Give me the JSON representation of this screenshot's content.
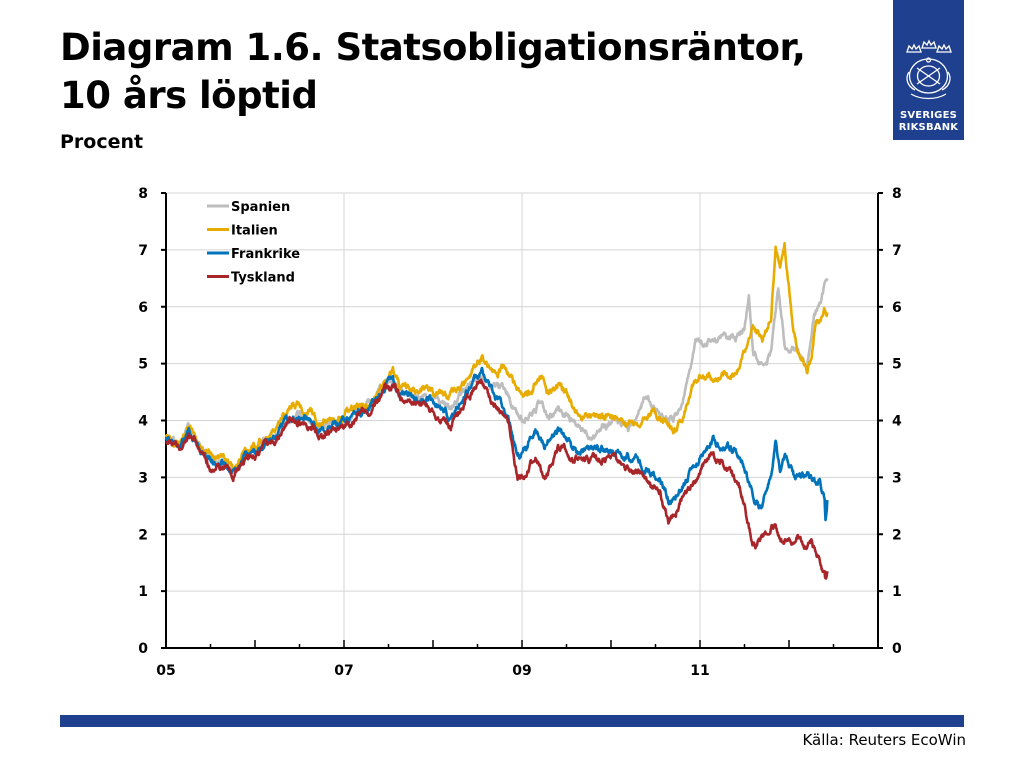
{
  "slide": {
    "title_line1": "Diagram 1.6. Statsobligationsräntor,",
    "title_line2": "10 års löptid",
    "subtitle": "Procent",
    "source": "Källa: Reuters EcoWin"
  },
  "logo": {
    "icon": "crown-emblem-icon",
    "text_line1": "SVERIGES",
    "text_line2": "RIKSBANK",
    "color": "#1f3f8f"
  },
  "chart_data": {
    "type": "line",
    "title": "",
    "xlabel": "",
    "ylabel": "Procent",
    "x_ticks": [
      "05",
      "07",
      "09",
      "11"
    ],
    "x_range": [
      2005.0,
      2013.0
    ],
    "y_ticks": [
      0,
      1,
      2,
      3,
      4,
      5,
      6,
      7,
      8
    ],
    "ylim": [
      0,
      8
    ],
    "grid": true,
    "legend_position": "top-left",
    "series": [
      {
        "name": "Spanien",
        "color": "#bdbdbd",
        "points": [
          [
            2005.0,
            3.75
          ],
          [
            2005.15,
            3.6
          ],
          [
            2005.25,
            3.85
          ],
          [
            2005.4,
            3.5
          ],
          [
            2005.5,
            3.35
          ],
          [
            2005.65,
            3.3
          ],
          [
            2005.75,
            3.1
          ],
          [
            2005.85,
            3.3
          ],
          [
            2005.95,
            3.45
          ],
          [
            2006.1,
            3.6
          ],
          [
            2006.25,
            3.75
          ],
          [
            2006.4,
            4.0
          ],
          [
            2006.55,
            4.1
          ],
          [
            2006.65,
            4.0
          ],
          [
            2006.75,
            3.85
          ],
          [
            2006.9,
            3.95
          ],
          [
            2007.0,
            4.0
          ],
          [
            2007.15,
            4.2
          ],
          [
            2007.3,
            4.3
          ],
          [
            2007.45,
            4.6
          ],
          [
            2007.55,
            4.75
          ],
          [
            2007.65,
            4.5
          ],
          [
            2007.8,
            4.4
          ],
          [
            2007.95,
            4.4
          ],
          [
            2008.1,
            4.3
          ],
          [
            2008.2,
            4.2
          ],
          [
            2008.3,
            4.4
          ],
          [
            2008.45,
            4.75
          ],
          [
            2008.55,
            4.85
          ],
          [
            2008.65,
            4.6
          ],
          [
            2008.8,
            4.6
          ],
          [
            2008.92,
            4.2
          ],
          [
            2009.0,
            4.0
          ],
          [
            2009.1,
            4.1
          ],
          [
            2009.2,
            4.3
          ],
          [
            2009.3,
            4.0
          ],
          [
            2009.4,
            4.2
          ],
          [
            2009.5,
            4.1
          ],
          [
            2009.6,
            3.9
          ],
          [
            2009.75,
            3.75
          ],
          [
            2009.9,
            3.9
          ],
          [
            2010.0,
            3.95
          ],
          [
            2010.1,
            4.0
          ],
          [
            2010.2,
            3.9
          ],
          [
            2010.3,
            4.1
          ],
          [
            2010.4,
            4.5
          ],
          [
            2010.5,
            4.2
          ],
          [
            2010.6,
            4.1
          ],
          [
            2010.7,
            4.0
          ],
          [
            2010.8,
            4.3
          ],
          [
            2010.9,
            5.0
          ],
          [
            2010.95,
            5.5
          ],
          [
            2011.05,
            5.3
          ],
          [
            2011.15,
            5.4
          ],
          [
            2011.3,
            5.4
          ],
          [
            2011.4,
            5.4
          ],
          [
            2011.5,
            5.6
          ],
          [
            2011.55,
            6.2
          ],
          [
            2011.6,
            5.2
          ],
          [
            2011.7,
            5.0
          ],
          [
            2011.8,
            5.2
          ],
          [
            2011.88,
            6.4
          ],
          [
            2011.95,
            5.3
          ],
          [
            2012.0,
            5.2
          ],
          [
            2012.1,
            5.3
          ],
          [
            2012.2,
            5.0
          ],
          [
            2012.28,
            5.8
          ],
          [
            2012.35,
            6.0
          ],
          [
            2012.4,
            6.4
          ],
          [
            2012.43,
            6.5
          ]
        ]
      },
      {
        "name": "Italien",
        "color": "#e8ac00",
        "points": [
          [
            2005.0,
            3.8
          ],
          [
            2005.15,
            3.65
          ],
          [
            2005.25,
            3.85
          ],
          [
            2005.4,
            3.55
          ],
          [
            2005.5,
            3.4
          ],
          [
            2005.65,
            3.35
          ],
          [
            2005.75,
            3.15
          ],
          [
            2005.85,
            3.35
          ],
          [
            2005.95,
            3.5
          ],
          [
            2006.1,
            3.7
          ],
          [
            2006.25,
            3.85
          ],
          [
            2006.4,
            4.3
          ],
          [
            2006.55,
            4.2
          ],
          [
            2006.65,
            4.1
          ],
          [
            2006.75,
            3.95
          ],
          [
            2006.9,
            4.05
          ],
          [
            2007.0,
            4.05
          ],
          [
            2007.15,
            4.25
          ],
          [
            2007.3,
            4.35
          ],
          [
            2007.45,
            4.65
          ],
          [
            2007.55,
            4.85
          ],
          [
            2007.65,
            4.55
          ],
          [
            2007.8,
            4.55
          ],
          [
            2007.95,
            4.55
          ],
          [
            2008.1,
            4.5
          ],
          [
            2008.2,
            4.45
          ],
          [
            2008.3,
            4.55
          ],
          [
            2008.45,
            4.95
          ],
          [
            2008.55,
            5.15
          ],
          [
            2008.65,
            4.9
          ],
          [
            2008.8,
            4.9
          ],
          [
            2008.9,
            4.7
          ],
          [
            2009.0,
            4.4
          ],
          [
            2009.1,
            4.5
          ],
          [
            2009.2,
            4.8
          ],
          [
            2009.3,
            4.45
          ],
          [
            2009.4,
            4.6
          ],
          [
            2009.5,
            4.45
          ],
          [
            2009.6,
            4.2
          ],
          [
            2009.75,
            4.05
          ],
          [
            2009.9,
            4.1
          ],
          [
            2010.0,
            4.1
          ],
          [
            2010.1,
            4.0
          ],
          [
            2010.2,
            3.9
          ],
          [
            2010.3,
            4.0
          ],
          [
            2010.4,
            4.2
          ],
          [
            2010.5,
            4.1
          ],
          [
            2010.6,
            4.0
          ],
          [
            2010.7,
            3.8
          ],
          [
            2010.8,
            4.0
          ],
          [
            2010.9,
            4.5
          ],
          [
            2011.0,
            4.8
          ],
          [
            2011.1,
            4.75
          ],
          [
            2011.25,
            4.8
          ],
          [
            2011.4,
            4.8
          ],
          [
            2011.5,
            5.2
          ],
          [
            2011.6,
            5.6
          ],
          [
            2011.7,
            5.4
          ],
          [
            2011.8,
            5.9
          ],
          [
            2011.85,
            7.1
          ],
          [
            2011.9,
            6.6
          ],
          [
            2011.95,
            7.1
          ],
          [
            2012.0,
            6.3
          ],
          [
            2012.05,
            5.5
          ],
          [
            2012.12,
            5.1
          ],
          [
            2012.2,
            4.9
          ],
          [
            2012.25,
            5.0
          ],
          [
            2012.3,
            5.7
          ],
          [
            2012.35,
            5.8
          ],
          [
            2012.4,
            6.0
          ],
          [
            2012.43,
            5.9
          ]
        ]
      },
      {
        "name": "Frankrike",
        "color": "#0073bb",
        "points": [
          [
            2005.0,
            3.7
          ],
          [
            2005.15,
            3.55
          ],
          [
            2005.25,
            3.8
          ],
          [
            2005.4,
            3.45
          ],
          [
            2005.5,
            3.3
          ],
          [
            2005.65,
            3.25
          ],
          [
            2005.75,
            3.05
          ],
          [
            2005.85,
            3.25
          ],
          [
            2005.95,
            3.4
          ],
          [
            2006.1,
            3.55
          ],
          [
            2006.25,
            3.75
          ],
          [
            2006.4,
            4.0
          ],
          [
            2006.55,
            4.05
          ],
          [
            2006.65,
            3.95
          ],
          [
            2006.75,
            3.8
          ],
          [
            2006.9,
            3.9
          ],
          [
            2007.0,
            3.95
          ],
          [
            2007.15,
            4.15
          ],
          [
            2007.3,
            4.25
          ],
          [
            2007.45,
            4.55
          ],
          [
            2007.55,
            4.7
          ],
          [
            2007.65,
            4.45
          ],
          [
            2007.8,
            4.35
          ],
          [
            2007.95,
            4.35
          ],
          [
            2008.1,
            4.2
          ],
          [
            2008.2,
            4.05
          ],
          [
            2008.3,
            4.3
          ],
          [
            2008.45,
            4.7
          ],
          [
            2008.55,
            4.8
          ],
          [
            2008.65,
            4.5
          ],
          [
            2008.75,
            4.3
          ],
          [
            2008.85,
            4.0
          ],
          [
            2008.95,
            3.4
          ],
          [
            2009.05,
            3.5
          ],
          [
            2009.15,
            3.9
          ],
          [
            2009.25,
            3.6
          ],
          [
            2009.4,
            3.8
          ],
          [
            2009.55,
            3.6
          ],
          [
            2009.7,
            3.45
          ],
          [
            2009.85,
            3.5
          ],
          [
            2010.0,
            3.45
          ],
          [
            2010.15,
            3.4
          ],
          [
            2010.3,
            3.3
          ],
          [
            2010.45,
            3.1
          ],
          [
            2010.55,
            3.0
          ],
          [
            2010.65,
            2.6
          ],
          [
            2010.75,
            2.8
          ],
          [
            2010.9,
            3.1
          ],
          [
            2011.0,
            3.4
          ],
          [
            2011.15,
            3.7
          ],
          [
            2011.25,
            3.55
          ],
          [
            2011.4,
            3.5
          ],
          [
            2011.5,
            3.2
          ],
          [
            2011.6,
            2.6
          ],
          [
            2011.7,
            2.5
          ],
          [
            2011.8,
            3.1
          ],
          [
            2011.85,
            3.7
          ],
          [
            2011.9,
            3.2
          ],
          [
            2011.95,
            3.4
          ],
          [
            2012.05,
            3.0
          ],
          [
            2012.15,
            3.1
          ],
          [
            2012.25,
            3.0
          ],
          [
            2012.3,
            2.9
          ],
          [
            2012.35,
            2.9
          ],
          [
            2012.4,
            2.6
          ],
          [
            2012.41,
            2.3
          ],
          [
            2012.43,
            2.6
          ]
        ]
      },
      {
        "name": "Tyskland",
        "color": "#a8262a",
        "points": [
          [
            2005.0,
            3.65
          ],
          [
            2005.15,
            3.5
          ],
          [
            2005.25,
            3.75
          ],
          [
            2005.4,
            3.4
          ],
          [
            2005.5,
            3.2
          ],
          [
            2005.65,
            3.15
          ],
          [
            2005.75,
            3.0
          ],
          [
            2005.85,
            3.2
          ],
          [
            2005.95,
            3.35
          ],
          [
            2006.1,
            3.5
          ],
          [
            2006.25,
            3.7
          ],
          [
            2006.4,
            4.0
          ],
          [
            2006.55,
            4.0
          ],
          [
            2006.65,
            3.9
          ],
          [
            2006.75,
            3.75
          ],
          [
            2006.9,
            3.85
          ],
          [
            2007.0,
            3.9
          ],
          [
            2007.15,
            4.1
          ],
          [
            2007.3,
            4.2
          ],
          [
            2007.45,
            4.5
          ],
          [
            2007.55,
            4.6
          ],
          [
            2007.65,
            4.4
          ],
          [
            2007.8,
            4.3
          ],
          [
            2007.95,
            4.3
          ],
          [
            2008.1,
            4.0
          ],
          [
            2008.2,
            3.9
          ],
          [
            2008.3,
            4.2
          ],
          [
            2008.45,
            4.55
          ],
          [
            2008.55,
            4.7
          ],
          [
            2008.65,
            4.4
          ],
          [
            2008.75,
            4.2
          ],
          [
            2008.85,
            3.9
          ],
          [
            2008.95,
            3.0
          ],
          [
            2009.05,
            3.0
          ],
          [
            2009.15,
            3.4
          ],
          [
            2009.25,
            3.0
          ],
          [
            2009.4,
            3.5
          ],
          [
            2009.55,
            3.35
          ],
          [
            2009.7,
            3.3
          ],
          [
            2009.85,
            3.35
          ],
          [
            2010.0,
            3.3
          ],
          [
            2010.15,
            3.15
          ],
          [
            2010.3,
            3.1
          ],
          [
            2010.45,
            2.8
          ],
          [
            2010.55,
            2.7
          ],
          [
            2010.65,
            2.2
          ],
          [
            2010.75,
            2.5
          ],
          [
            2010.9,
            2.9
          ],
          [
            2011.0,
            3.1
          ],
          [
            2011.15,
            3.4
          ],
          [
            2011.25,
            3.3
          ],
          [
            2011.4,
            3.0
          ],
          [
            2011.5,
            2.5
          ],
          [
            2011.6,
            1.8
          ],
          [
            2011.7,
            1.9
          ],
          [
            2011.8,
            2.1
          ],
          [
            2011.85,
            2.2
          ],
          [
            2011.9,
            1.9
          ],
          [
            2012.0,
            1.9
          ],
          [
            2012.1,
            2.0
          ],
          [
            2012.2,
            1.8
          ],
          [
            2012.25,
            1.9
          ],
          [
            2012.3,
            1.6
          ],
          [
            2012.35,
            1.5
          ],
          [
            2012.4,
            1.3
          ],
          [
            2012.41,
            1.2
          ],
          [
            2012.43,
            1.35
          ]
        ]
      }
    ]
  }
}
